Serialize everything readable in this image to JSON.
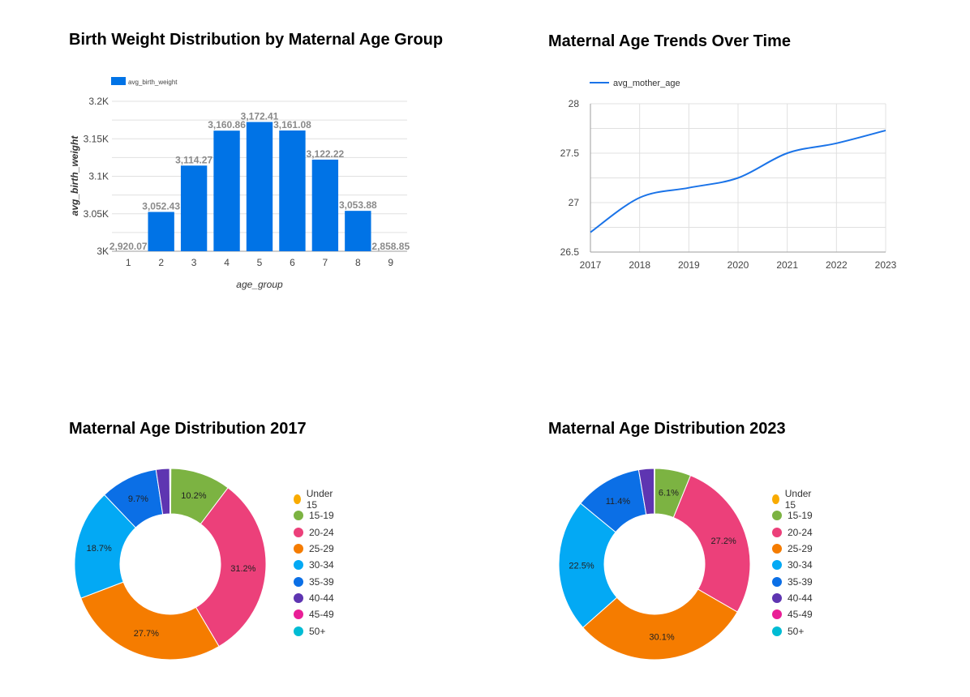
{
  "chart_data": [
    {
      "type": "bar",
      "title": "Birth Weight Distribution by Maternal Age Group",
      "xlabel": "age_group",
      "ylabel": "avg_birth_weight",
      "legend": [
        "avg_birth_weight"
      ],
      "legend_position": "top-left",
      "categories": [
        "1",
        "2",
        "3",
        "4",
        "5",
        "6",
        "7",
        "8",
        "9"
      ],
      "values": [
        2920.07,
        3052.43,
        3114.27,
        3160.86,
        3172.41,
        3161.08,
        3122.22,
        3053.88,
        2858.85
      ],
      "data_labels": [
        "2,920.07",
        "3,052.43",
        "3,114.27",
        "3,160.86",
        "3,172.41",
        "3,161.08",
        "3,122.22",
        "3,053.88",
        "2,858.85"
      ],
      "yticks": [
        "3K",
        "3.05K",
        "3.1K",
        "3.15K",
        "3.2K"
      ],
      "ylim": [
        3000,
        3200
      ],
      "grid": true,
      "color": "#0073e6"
    },
    {
      "type": "line",
      "title": "Maternal Age Trends Over Time",
      "series": [
        {
          "name": "avg_mother_age",
          "x": [
            2017,
            2018,
            2019,
            2020,
            2021,
            2022,
            2023
          ],
          "values": [
            26.7,
            27.05,
            27.15,
            27.25,
            27.5,
            27.6,
            27.73
          ]
        }
      ],
      "xticks": [
        "2017",
        "2018",
        "2019",
        "2020",
        "2021",
        "2022",
        "2023"
      ],
      "yticks": [
        "26.5",
        "27",
        "27.5",
        "28"
      ],
      "ylim": [
        26.5,
        28
      ],
      "grid": true,
      "legend_position": "top-left",
      "color": "#1a73e8"
    },
    {
      "type": "pie",
      "title": "Maternal Age Distribution 2017",
      "donut": true,
      "labels": [
        "Under 15",
        "15-19",
        "20-24",
        "25-29",
        "30-34",
        "35-39",
        "40-44",
        "45-49",
        "50+"
      ],
      "values": [
        0.1,
        10.2,
        31.2,
        27.7,
        18.7,
        9.7,
        2.3,
        0.1,
        0.0
      ],
      "slice_labels": [
        "",
        "10.2%",
        "31.2%",
        "27.7%",
        "18.7%",
        "9.7%",
        "",
        "",
        ""
      ],
      "colors": [
        "#f9ab00",
        "#7cb342",
        "#ec407a",
        "#f57c00",
        "#03a9f4",
        "#0b6fe6",
        "#5e35b1",
        "#e91e96",
        "#00bcd4"
      ],
      "legend_position": "right"
    },
    {
      "type": "pie",
      "title": "Maternal Age Distribution 2023",
      "donut": true,
      "labels": [
        "Under 15",
        "15-19",
        "20-24",
        "25-29",
        "30-34",
        "35-39",
        "40-44",
        "45-49",
        "50+"
      ],
      "values": [
        0.05,
        6.1,
        27.2,
        30.1,
        22.5,
        11.4,
        2.6,
        0.05,
        0.0
      ],
      "slice_labels": [
        "",
        "6.1%",
        "27.2%",
        "30.1%",
        "22.5%",
        "11.4%",
        "",
        "",
        ""
      ],
      "colors": [
        "#f9ab00",
        "#7cb342",
        "#ec407a",
        "#f57c00",
        "#03a9f4",
        "#0b6fe6",
        "#5e35b1",
        "#e91e96",
        "#00bcd4"
      ],
      "legend_position": "right"
    }
  ]
}
